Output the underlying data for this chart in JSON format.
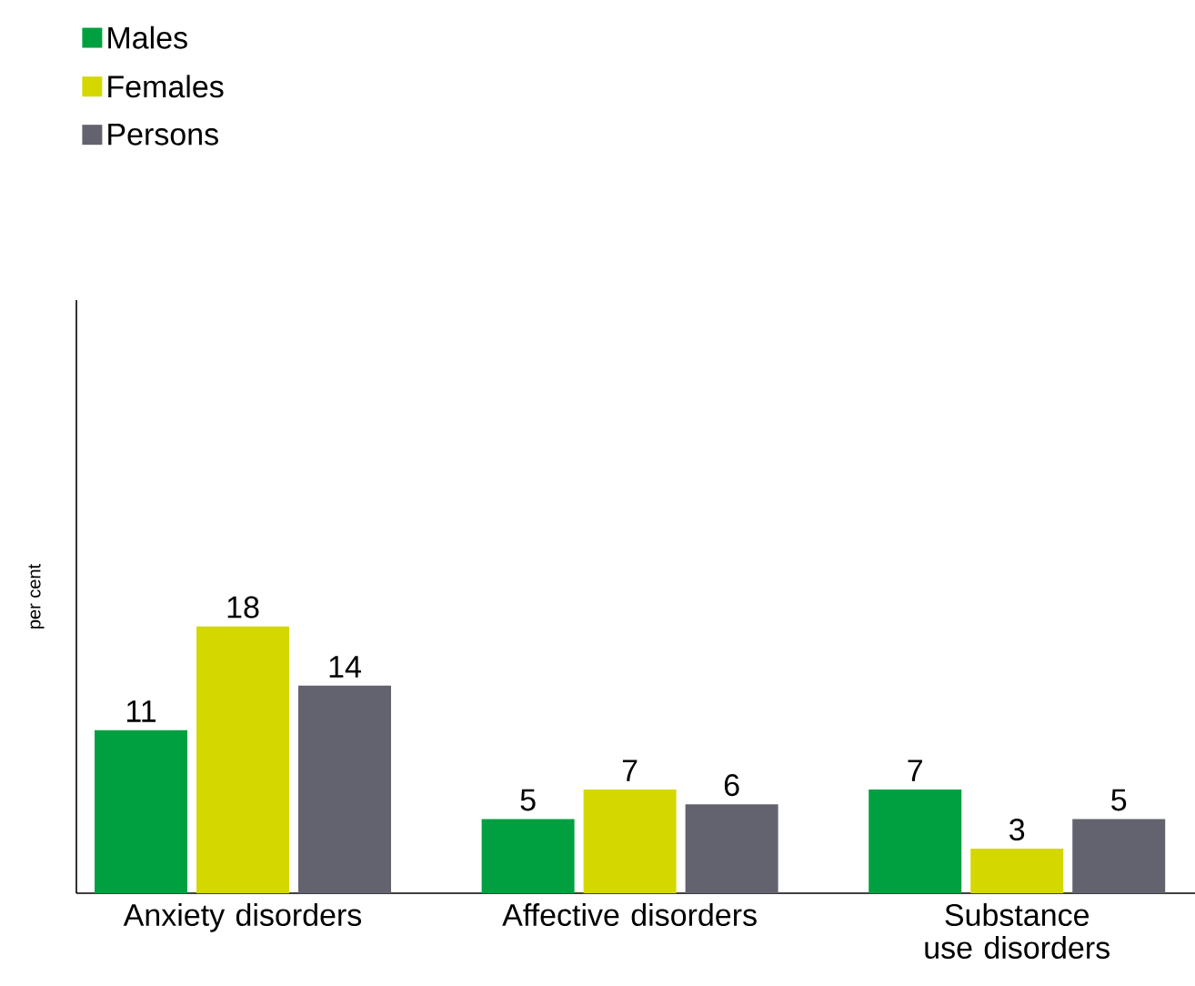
{
  "chart_data": {
    "type": "bar",
    "ylabel": "per cent",
    "categories": [
      "Anxiety disorders",
      "Affective disorders",
      "Substance use disorders"
    ],
    "series": [
      {
        "name": "Males",
        "color": "#00a040",
        "values": [
          11,
          5,
          7
        ]
      },
      {
        "name": "Females",
        "color": "#d4d800",
        "values": [
          18,
          7,
          3
        ]
      },
      {
        "name": "Persons",
        "color": "#62636e",
        "values": [
          14,
          6,
          5
        ]
      }
    ],
    "ylim": [
      0,
      40
    ],
    "data_labels": true,
    "legend": "top left"
  }
}
